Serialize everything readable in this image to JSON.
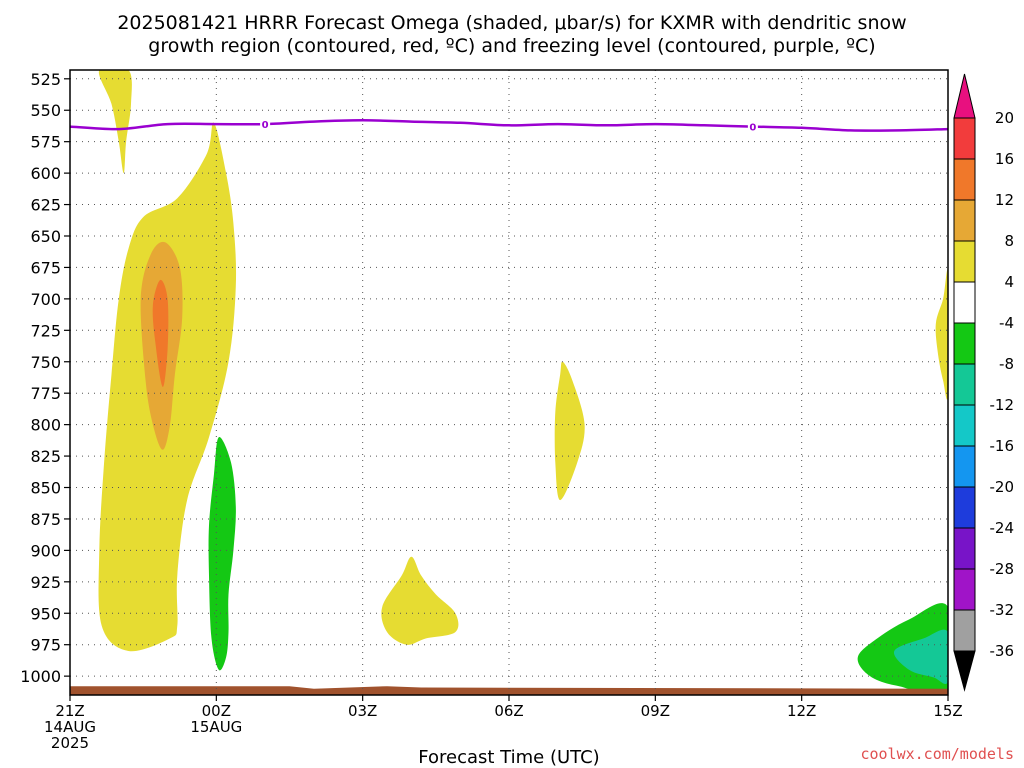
{
  "title": {
    "line1": "2025081421 HRRR Forecast Omega (shaded, μbar/s) for KXMR with dendritic snow",
    "line2": "growth region (contoured, red, ºC) and freezing level (contoured, purple, ºC)"
  },
  "chart_data": {
    "type": "heatmap",
    "xlabel": "Forecast Time (UTC)",
    "ylabel": "",
    "x_ticks": [
      {
        "hour": 0,
        "lines": [
          "21Z",
          "14AUG",
          "2025"
        ]
      },
      {
        "hour": 3,
        "lines": [
          "00Z",
          "15AUG"
        ]
      },
      {
        "hour": 6,
        "lines": [
          "03Z"
        ]
      },
      {
        "hour": 9,
        "lines": [
          "06Z"
        ]
      },
      {
        "hour": 12,
        "lines": [
          "09Z"
        ]
      },
      {
        "hour": 15,
        "lines": [
          "12Z"
        ]
      },
      {
        "hour": 18,
        "lines": [
          "15Z"
        ]
      }
    ],
    "xlim_hours": [
      0,
      18
    ],
    "y_ticks": [
      525,
      550,
      575,
      600,
      625,
      650,
      675,
      700,
      725,
      750,
      775,
      800,
      825,
      850,
      875,
      900,
      925,
      950,
      975,
      1000
    ],
    "ylim_hPa": [
      518,
      1015
    ],
    "grid": true,
    "colorbar": {
      "labels": [
        "20",
        "16",
        "12",
        "8",
        "4",
        "-4",
        "-8",
        "-12",
        "-16",
        "-20",
        "-24",
        "-28",
        "-32",
        "-36"
      ],
      "colors": [
        "#e8107f",
        "#f23c3c",
        "#f0782a",
        "#e6a835",
        "#e6dc32",
        "#ffffff",
        "#14c814",
        "#14c896",
        "#14c8c8",
        "#1496f0",
        "#1e3cdc",
        "#7814c8",
        "#a014c8",
        "#a0a0a0",
        "#000000"
      ]
    },
    "freezing_level": {
      "color": "#9a00d0",
      "label": "0",
      "label_hours": [
        4,
        14
      ],
      "points": [
        [
          0,
          563
        ],
        [
          1,
          565
        ],
        [
          2,
          561
        ],
        [
          3,
          561
        ],
        [
          4,
          561
        ],
        [
          5,
          559
        ],
        [
          6,
          558
        ],
        [
          7,
          559
        ],
        [
          8,
          560
        ],
        [
          9,
          562
        ],
        [
          10,
          561
        ],
        [
          11,
          562
        ],
        [
          12,
          561
        ],
        [
          13,
          562
        ],
        [
          14,
          563
        ],
        [
          15,
          564
        ],
        [
          16,
          566
        ],
        [
          17,
          566
        ],
        [
          18,
          565
        ]
      ]
    },
    "omega_regions": [
      {
        "level": "4",
        "color": "#e6dc32",
        "points": [
          [
            0.6,
            518
          ],
          [
            1.2,
            518
          ],
          [
            1.25,
            545
          ],
          [
            1.15,
            575
          ],
          [
            1.1,
            600
          ],
          [
            1.0,
            575
          ],
          [
            0.85,
            545
          ]
        ]
      },
      {
        "level": "4",
        "color": "#e6dc32",
        "points": [
          [
            1.2,
            980
          ],
          [
            0.65,
            960
          ],
          [
            0.6,
            900
          ],
          [
            0.7,
            830
          ],
          [
            0.85,
            760
          ],
          [
            1.0,
            700
          ],
          [
            1.2,
            660
          ],
          [
            1.5,
            635
          ],
          [
            2.2,
            620
          ],
          [
            2.8,
            585
          ],
          [
            2.95,
            560
          ],
          [
            3.2,
            600
          ],
          [
            3.35,
            640
          ],
          [
            3.4,
            690
          ],
          [
            3.25,
            750
          ],
          [
            2.85,
            810
          ],
          [
            2.4,
            860
          ],
          [
            2.2,
            920
          ],
          [
            2.2,
            960
          ],
          [
            2.05,
            970
          ]
        ]
      },
      {
        "level": "8",
        "color": "#e6a835",
        "points": [
          [
            1.55,
            765
          ],
          [
            1.45,
            700
          ],
          [
            1.65,
            665
          ],
          [
            1.95,
            655
          ],
          [
            2.25,
            675
          ],
          [
            2.3,
            715
          ],
          [
            2.15,
            760
          ],
          [
            2.05,
            800
          ],
          [
            1.9,
            820
          ],
          [
            1.7,
            800
          ]
        ]
      },
      {
        "level": "12",
        "color": "#f0782a",
        "points": [
          [
            1.75,
            735
          ],
          [
            1.7,
            705
          ],
          [
            1.85,
            685
          ],
          [
            2.0,
            700
          ],
          [
            2.0,
            740
          ],
          [
            1.9,
            770
          ]
        ]
      },
      {
        "level": "4",
        "color": "#e6dc32",
        "points": [
          [
            6.4,
            945
          ],
          [
            6.8,
            920
          ],
          [
            7.0,
            905
          ],
          [
            7.2,
            920
          ],
          [
            7.5,
            935
          ],
          [
            7.9,
            950
          ],
          [
            7.9,
            965
          ],
          [
            7.3,
            970
          ],
          [
            6.9,
            975
          ],
          [
            6.5,
            965
          ]
        ]
      },
      {
        "level": "4",
        "color": "#e6dc32",
        "points": [
          [
            9.95,
            790
          ],
          [
            10.05,
            760
          ],
          [
            10.1,
            750
          ],
          [
            10.3,
            765
          ],
          [
            10.55,
            800
          ],
          [
            10.4,
            830
          ],
          [
            10.05,
            860
          ],
          [
            9.95,
            830
          ]
        ]
      },
      {
        "level": "4",
        "color": "#e6dc32",
        "points": [
          [
            18,
            680
          ],
          [
            17.9,
            700
          ],
          [
            17.75,
            720
          ],
          [
            17.8,
            745
          ],
          [
            17.9,
            765
          ],
          [
            18,
            775
          ]
        ]
      },
      {
        "level": "-4",
        "color": "#14c814",
        "points": [
          [
            2.85,
            880
          ],
          [
            2.95,
            840
          ],
          [
            3.05,
            810
          ],
          [
            3.3,
            830
          ],
          [
            3.4,
            865
          ],
          [
            3.35,
            900
          ],
          [
            3.25,
            935
          ],
          [
            3.25,
            965
          ],
          [
            3.2,
            985
          ],
          [
            3.05,
            995
          ],
          [
            2.9,
            970
          ],
          [
            2.85,
            920
          ]
        ]
      },
      {
        "level": "-4",
        "color": "#14c814",
        "points": [
          [
            18,
            945
          ],
          [
            17.2,
            955
          ],
          [
            16.55,
            970
          ],
          [
            16.15,
            985
          ],
          [
            16.4,
            1000
          ],
          [
            17,
            1008
          ],
          [
            18,
            1012
          ]
        ]
      },
      {
        "level": "-8",
        "color": "#14c896",
        "points": [
          [
            18,
            965
          ],
          [
            17.5,
            970
          ],
          [
            16.9,
            980
          ],
          [
            17.2,
            995
          ],
          [
            17.7,
            1001
          ],
          [
            18,
            1004
          ]
        ]
      }
    ],
    "terrain": {
      "color": "#a0522d",
      "points": [
        [
          0,
          1008
        ],
        [
          3,
          1008
        ],
        [
          4.5,
          1008
        ],
        [
          5,
          1010
        ],
        [
          6.5,
          1008
        ],
        [
          7.2,
          1009
        ],
        [
          18,
          1010
        ]
      ],
      "bottom_hPa": 1015
    }
  },
  "credit": "coolwx.com/models"
}
